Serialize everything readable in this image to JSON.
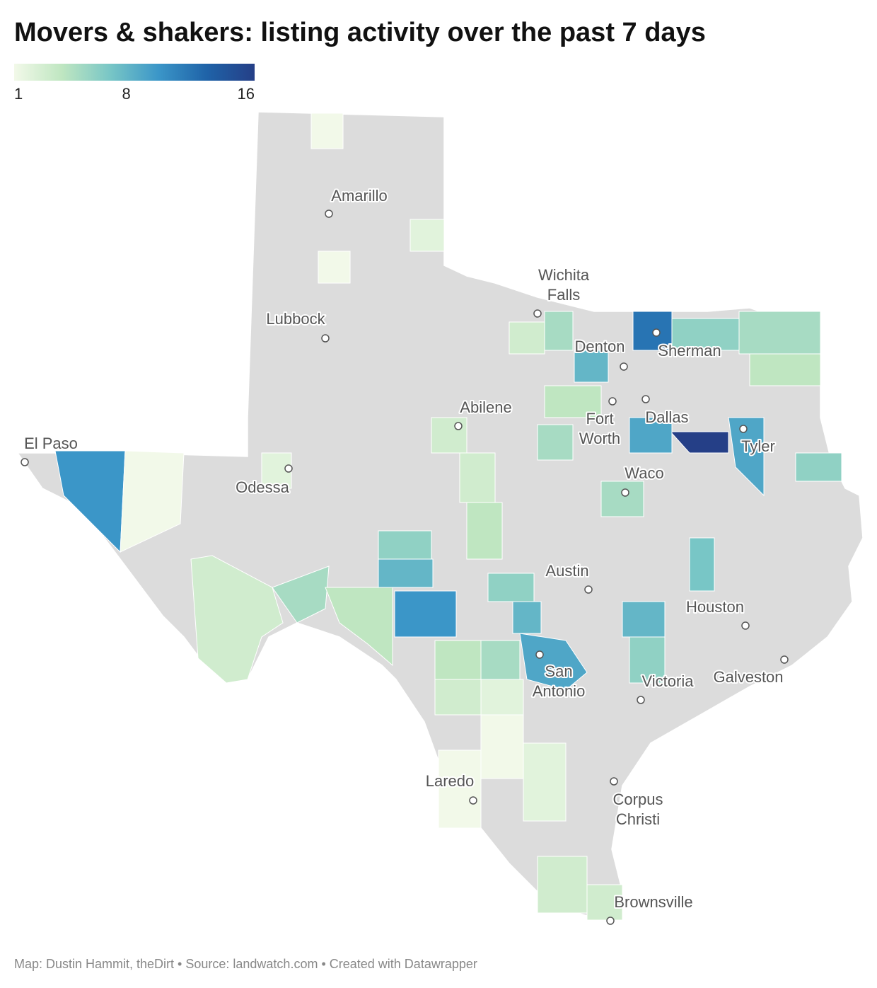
{
  "title": "Movers & shakers: listing activity over the past 7 days",
  "legend": {
    "ticks": [
      1,
      8,
      16
    ],
    "colors": [
      "#f2f9e9",
      "#bfe6c1",
      "#78c6c6",
      "#3b96c8",
      "#1f63a8",
      "#253f87"
    ]
  },
  "map_fill": "#dcdcdc",
  "regions": [
    10,
    1,
    3,
    5,
    4,
    6,
    8,
    10,
    16,
    12,
    9,
    8,
    9,
    6,
    5,
    9,
    8,
    6,
    6,
    5,
    8,
    7,
    6,
    4,
    5,
    3,
    2,
    2,
    3,
    3,
    1,
    2,
    1,
    3,
    3,
    2,
    3,
    4,
    5,
    4,
    4,
    5,
    1,
    1
  ],
  "cities": [
    {
      "lines": [
        "Amarillo"
      ]
    },
    {
      "lines": [
        "Wichita",
        "Falls"
      ]
    },
    {
      "lines": [
        "Lubbock"
      ]
    },
    {
      "lines": [
        "Denton"
      ]
    },
    {
      "lines": [
        "Sherman"
      ]
    },
    {
      "lines": [
        "Abilene"
      ]
    },
    {
      "lines": [
        "Fort",
        "Worth"
      ]
    },
    {
      "lines": [
        "Dallas"
      ]
    },
    {
      "lines": [
        "Tyler"
      ]
    },
    {
      "lines": [
        "El Paso"
      ]
    },
    {
      "lines": [
        "Odessa"
      ]
    },
    {
      "lines": [
        "Waco"
      ]
    },
    {
      "lines": [
        "Austin"
      ]
    },
    {
      "lines": [
        "Houston"
      ]
    },
    {
      "lines": [
        "San",
        "Antonio"
      ]
    },
    {
      "lines": [
        "Victoria"
      ]
    },
    {
      "lines": [
        "Galveston"
      ]
    },
    {
      "lines": [
        "Laredo"
      ]
    },
    {
      "lines": [
        "Corpus",
        "Christi"
      ]
    },
    {
      "lines": [
        "Brownsville"
      ]
    }
  ],
  "footer": "Map: Dustin Hammit, theDirt • Source: landwatch.com • Created with Datawrapper"
}
